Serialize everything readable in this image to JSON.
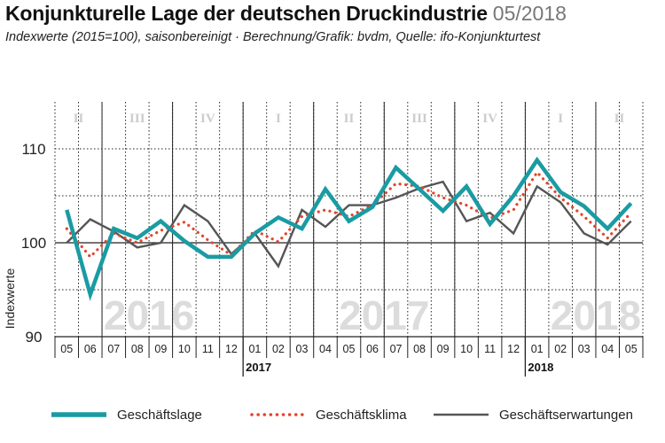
{
  "header": {
    "title": "Konjunkturelle Lage der deutschen Druckindustrie",
    "date": "05/2018",
    "subtitle": "Indexwerte (2015=100), saisonbereinigt · Berechnung/Grafik: bvdm, Quelle: ifo-Konjunkturtest"
  },
  "colors": {
    "lage": "#1a9ba3",
    "klima": "#e2452c",
    "erwartungen": "#555555",
    "grid": "#222222",
    "watermark": "#dcdcdc"
  },
  "chart_data": {
    "type": "line",
    "x": [
      "05",
      "06",
      "07",
      "08",
      "09",
      "10",
      "11",
      "12",
      "01",
      "02",
      "03",
      "04",
      "05",
      "06",
      "07",
      "08",
      "09",
      "10",
      "11",
      "12",
      "01",
      "02",
      "03",
      "04",
      "05"
    ],
    "year_labels": [
      "2017",
      "2018"
    ],
    "year_label_positions": [
      8,
      20
    ],
    "ylabel": "Indexwerte",
    "yticks": [
      90,
      100,
      110
    ],
    "ylim": [
      90,
      115
    ],
    "quarters": [
      {
        "label": "II",
        "start": 0,
        "end": 1
      },
      {
        "label": "III",
        "start": 2,
        "end": 4
      },
      {
        "label": "IV",
        "start": 5,
        "end": 7
      },
      {
        "label": "I",
        "start": 8,
        "end": 10
      },
      {
        "label": "II",
        "start": 11,
        "end": 13
      },
      {
        "label": "III",
        "start": 14,
        "end": 16
      },
      {
        "label": "IV",
        "start": 17,
        "end": 19
      },
      {
        "label": "I",
        "start": 20,
        "end": 22
      },
      {
        "label": "II",
        "start": 23,
        "end": 24
      }
    ],
    "watermarks": [
      {
        "text": "2016",
        "center": 3.5
      },
      {
        "text": "2017",
        "center": 13.5
      },
      {
        "text": "2018",
        "center": 22.5
      }
    ],
    "series": [
      {
        "name": "Geschäftslage",
        "style": "lage",
        "values": [
          103.5,
          94.5,
          101.5,
          100.5,
          102.3,
          100.2,
          98.5,
          98.5,
          101.0,
          102.7,
          101.5,
          105.7,
          102.3,
          103.8,
          108.0,
          105.7,
          103.4,
          106.0,
          102.0,
          105.0,
          108.8,
          105.4,
          103.9,
          101.5,
          104.2
        ]
      },
      {
        "name": "Geschäftsklima",
        "style": "klima",
        "values": [
          101.5,
          98.5,
          101.0,
          100.0,
          101.3,
          102.2,
          100.3,
          98.7,
          101.3,
          100.1,
          102.8,
          103.5,
          102.8,
          104.0,
          106.3,
          106.0,
          104.8,
          104.0,
          102.6,
          103.5,
          107.5,
          104.8,
          102.8,
          100.5,
          103.2
        ]
      },
      {
        "name": "Geschäftserwartungen",
        "style": "erwartungen",
        "values": [
          100.0,
          102.5,
          101.2,
          99.5,
          100.0,
          104.0,
          102.3,
          98.8,
          101.0,
          97.5,
          103.5,
          101.7,
          104.0,
          104.0,
          104.8,
          105.8,
          106.5,
          102.3,
          103.2,
          101.0,
          106.0,
          104.3,
          101.0,
          99.8,
          102.3
        ]
      }
    ]
  }
}
